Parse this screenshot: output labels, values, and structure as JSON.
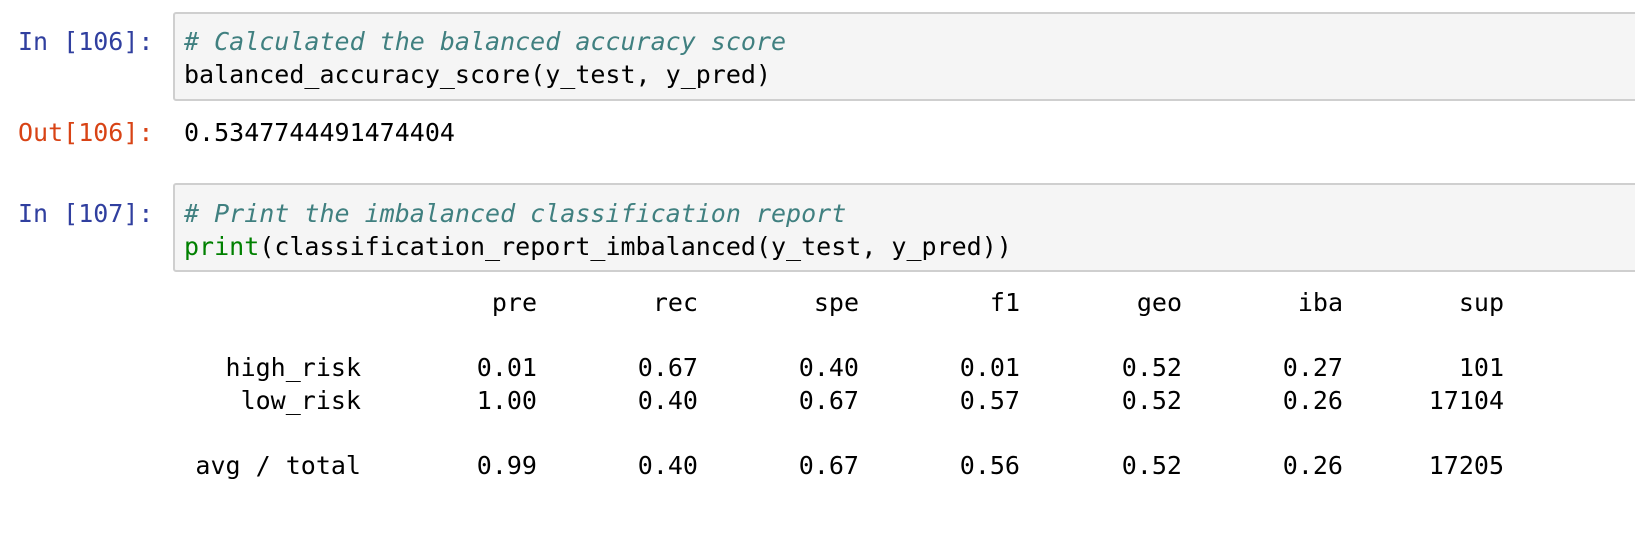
{
  "cells": [
    {
      "prompt": "In [106]:",
      "comment": "# Calculated the balanced accuracy score",
      "code": "balanced_accuracy_score(y_test, y_pred)"
    },
    {
      "prompt": "In [107]:",
      "comment": "# Print the imbalanced classification report",
      "code_builtin": "print",
      "code_rest": "(classification_report_imbalanced(y_test, y_pred))"
    }
  ],
  "output_106": {
    "prompt": "Out[106]:",
    "value": "0.5347744491474404"
  },
  "report": {
    "headers": [
      "pre",
      "rec",
      "spe",
      "f1",
      "geo",
      "iba",
      "sup"
    ],
    "rows": [
      {
        "label": "high_risk",
        "values": [
          "0.01",
          "0.67",
          "0.40",
          "0.01",
          "0.52",
          "0.27",
          "101"
        ]
      },
      {
        "label": "low_risk",
        "values": [
          "1.00",
          "0.40",
          "0.67",
          "0.57",
          "0.52",
          "0.26",
          "17104"
        ]
      },
      {
        "label": "avg / total",
        "values": [
          "0.99",
          "0.40",
          "0.67",
          "0.56",
          "0.52",
          "0.26",
          "17205"
        ]
      }
    ]
  },
  "colors": {
    "in_prompt": "#303f9f",
    "out_prompt": "#d84315",
    "comment": "#408080",
    "builtin": "#008000",
    "cell_bg": "#f5f5f5",
    "cell_border": "#cfcfcf"
  }
}
